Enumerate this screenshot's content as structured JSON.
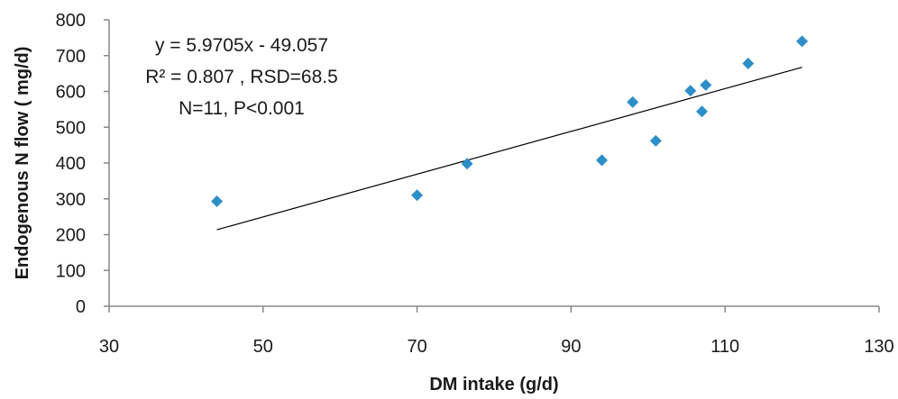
{
  "chart_data": {
    "type": "scatter",
    "title": "",
    "xlabel": "DM intake (g/d)",
    "ylabel": "Endogenous  N flow ( mg/d)",
    "xlim": [
      30,
      130
    ],
    "ylim": [
      0,
      800
    ],
    "xticks": [
      "30",
      "50",
      "70",
      "90",
      "110",
      "130"
    ],
    "yticks": [
      "0",
      "100",
      "200",
      "300",
      "400",
      "500",
      "600",
      "700",
      "800"
    ],
    "grid": false,
    "legend": "none",
    "marker_color": "#2E8FC8",
    "line_color": "#000000",
    "series": [
      {
        "marker": "diamond",
        "x": [
          44,
          70,
          76.5,
          94,
          98,
          101,
          105.5,
          107,
          107.5,
          113,
          120
        ],
        "y": [
          293,
          310,
          398,
          408,
          570,
          462,
          602,
          544,
          618,
          678,
          740
        ]
      }
    ],
    "trendline": {
      "type": "linear",
      "slope": 5.9705,
      "intercept": -49.057,
      "x_range": [
        44,
        120
      ]
    },
    "annotations": [
      "y = 5.9705x - 49.057",
      "R² = 0.807 , RSD=68.5",
      "N=11, P<0.001"
    ]
  }
}
